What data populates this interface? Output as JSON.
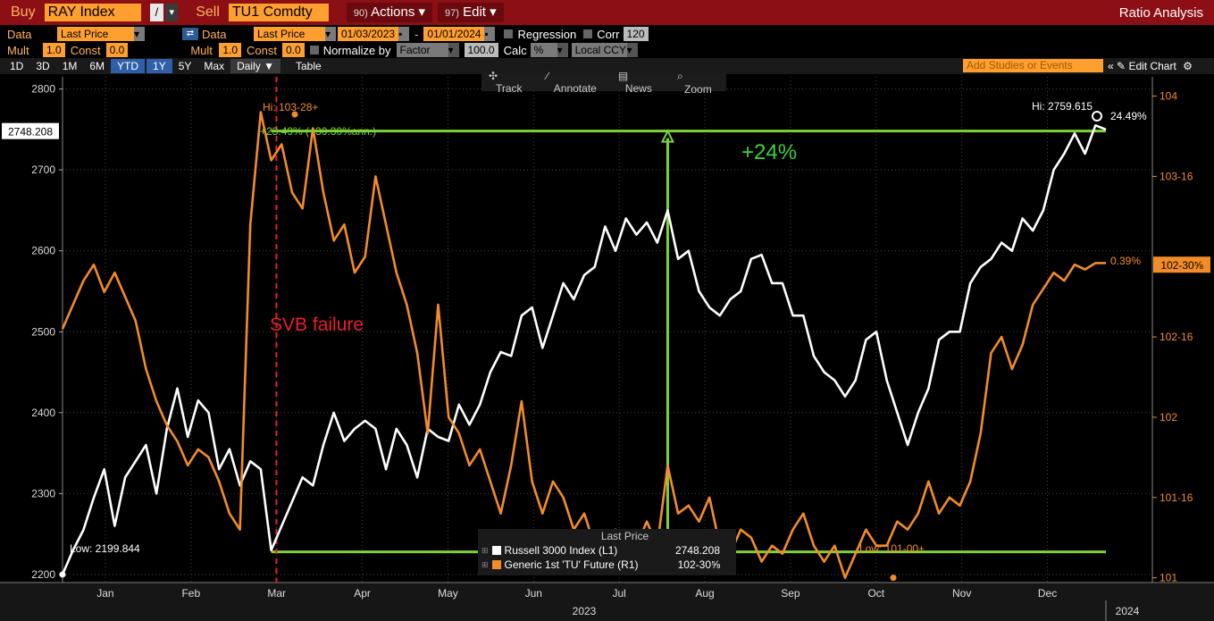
{
  "topbar": {
    "buy_label": "Buy",
    "buy_ticker": "RAY Index",
    "separator": "/",
    "sell_label": "Sell",
    "sell_ticker": "TU1 Comdty",
    "actions_num": "90)",
    "actions_label": "Actions",
    "edit_num": "97)",
    "edit_label": "Edit",
    "title": "Ratio Analysis"
  },
  "row1": {
    "data_label": "Data",
    "data_value": "Last Price",
    "data2_label": "Data",
    "data2_value": "Last Price",
    "start_date": "01/03/2023",
    "dash": "-",
    "end_date": "01/01/2024",
    "regression_label": "Regression",
    "corr_label": "Corr",
    "corr_value": "120"
  },
  "row2": {
    "mult_label": "Mult",
    "mult_value": "1.0",
    "const_label": "Const",
    "const_value": "0.0",
    "mult2_label": "Mult",
    "mult2_value": "1.0",
    "const2_label": "Const",
    "const2_value": "0.0",
    "normalize_label": "Normalize by",
    "normalize_value": "Factor",
    "factor_value": "100.0",
    "calc_label": "Calc",
    "calc_value": "%",
    "ccy_value": "Local CCY"
  },
  "periods": {
    "items": [
      "1D",
      "3D",
      "1M",
      "6M",
      "YTD",
      "1Y",
      "5Y",
      "Max"
    ],
    "freq": "Daily",
    "table": "Table",
    "add_studies": "Add Studies or Events",
    "edit_chart": "Edit Chart"
  },
  "chart_toolbar": {
    "track": "Track",
    "annotate": "Annotate",
    "news": "News",
    "zoom": "Zoom"
  },
  "legend": {
    "title": "Last Price",
    "items": [
      {
        "name": "Russell 3000 Index  (L1)",
        "value": "2748.208",
        "color": "#ffffff"
      },
      {
        "name": "Generic 1st 'TU' Future  (R1)",
        "value": "102-30⅝",
        "color": "#f28c28"
      }
    ]
  },
  "chart_data": {
    "type": "line",
    "x_months": [
      "Jan",
      "Feb",
      "Mar",
      "Apr",
      "May",
      "Jun",
      "Jul",
      "Aug",
      "Sep",
      "Oct",
      "Nov",
      "Dec"
    ],
    "x_year_label": "2023",
    "x_next_year_label": "2024",
    "left_axis": {
      "ticks": [
        2200,
        2300,
        2400,
        2500,
        2600,
        2700,
        2800
      ],
      "range": [
        2190,
        2815
      ]
    },
    "right_axis": {
      "ticks": [
        "101",
        "101-16",
        "102",
        "102-16",
        "103-16",
        "104"
      ],
      "tick_values": [
        101,
        101.5,
        102,
        102.5,
        103.5,
        104
      ],
      "range": [
        100.97,
        104.12
      ]
    },
    "current_left_label": "2748.208",
    "current_right_label": "102-30⅝",
    "series": [
      {
        "name": "Russell 3000 Index",
        "axis": "left",
        "color": "#ffffff",
        "x": [
          0,
          0.01,
          0.02,
          0.03,
          0.04,
          0.05,
          0.06,
          0.07,
          0.08,
          0.09,
          0.1,
          0.11,
          0.12,
          0.13,
          0.14,
          0.15,
          0.16,
          0.17,
          0.18,
          0.19,
          0.2,
          0.21,
          0.22,
          0.23,
          0.24,
          0.25,
          0.26,
          0.27,
          0.28,
          0.29,
          0.3,
          0.31,
          0.32,
          0.33,
          0.34,
          0.35,
          0.36,
          0.37,
          0.38,
          0.39,
          0.4,
          0.41,
          0.42,
          0.43,
          0.44,
          0.45,
          0.46,
          0.47,
          0.48,
          0.49,
          0.5,
          0.51,
          0.52,
          0.53,
          0.54,
          0.55,
          0.56,
          0.57,
          0.58,
          0.59,
          0.6,
          0.61,
          0.62,
          0.63,
          0.64,
          0.65,
          0.66,
          0.67,
          0.68,
          0.69,
          0.7,
          0.71,
          0.72,
          0.73,
          0.74,
          0.75,
          0.76,
          0.77,
          0.78,
          0.79,
          0.8,
          0.81,
          0.82,
          0.83,
          0.84,
          0.85,
          0.86,
          0.87,
          0.88,
          0.89,
          0.9,
          0.91,
          0.92,
          0.93,
          0.94,
          0.95,
          0.96,
          0.97,
          0.98,
          0.99,
          1.0
        ],
        "y": [
          2200,
          2230,
          2255,
          2295,
          2330,
          2260,
          2320,
          2340,
          2360,
          2300,
          2380,
          2430,
          2370,
          2415,
          2400,
          2330,
          2355,
          2310,
          2340,
          2330,
          2230,
          2260,
          2290,
          2320,
          2310,
          2360,
          2400,
          2365,
          2380,
          2390,
          2380,
          2330,
          2380,
          2360,
          2320,
          2380,
          2370,
          2365,
          2410,
          2385,
          2410,
          2450,
          2475,
          2470,
          2520,
          2530,
          2480,
          2520,
          2560,
          2540,
          2570,
          2580,
          2630,
          2600,
          2640,
          2620,
          2635,
          2610,
          2650,
          2590,
          2600,
          2550,
          2530,
          2520,
          2540,
          2550,
          2590,
          2595,
          2560,
          2560,
          2520,
          2520,
          2470,
          2450,
          2440,
          2420,
          2440,
          2490,
          2500,
          2440,
          2400,
          2360,
          2400,
          2430,
          2490,
          2500,
          2500,
          2560,
          2580,
          2590,
          2610,
          2600,
          2640,
          2625,
          2650,
          2700,
          2720,
          2745,
          2720,
          2755,
          2750
        ]
      },
      {
        "name": "Generic 1st 'TU' Future",
        "axis": "right",
        "color": "#f28c28",
        "x": [
          0,
          0.01,
          0.02,
          0.03,
          0.04,
          0.05,
          0.06,
          0.07,
          0.08,
          0.09,
          0.1,
          0.11,
          0.12,
          0.13,
          0.14,
          0.15,
          0.16,
          0.17,
          0.18,
          0.19,
          0.2,
          0.21,
          0.22,
          0.23,
          0.24,
          0.25,
          0.26,
          0.27,
          0.28,
          0.29,
          0.3,
          0.31,
          0.32,
          0.33,
          0.34,
          0.35,
          0.36,
          0.37,
          0.38,
          0.39,
          0.4,
          0.41,
          0.42,
          0.43,
          0.44,
          0.45,
          0.46,
          0.47,
          0.48,
          0.49,
          0.5,
          0.51,
          0.52,
          0.53,
          0.54,
          0.55,
          0.56,
          0.57,
          0.58,
          0.59,
          0.6,
          0.61,
          0.62,
          0.63,
          0.64,
          0.65,
          0.66,
          0.67,
          0.68,
          0.69,
          0.7,
          0.71,
          0.72,
          0.73,
          0.74,
          0.75,
          0.76,
          0.77,
          0.78,
          0.79,
          0.8,
          0.81,
          0.82,
          0.83,
          0.84,
          0.85,
          0.86,
          0.87,
          0.88,
          0.89,
          0.9,
          0.91,
          0.92,
          0.93,
          0.94,
          0.95,
          0.96,
          0.97,
          0.98,
          0.99,
          1.0
        ],
        "y": [
          102.55,
          102.7,
          102.85,
          102.95,
          102.78,
          102.9,
          102.75,
          102.6,
          102.3,
          102.1,
          101.95,
          101.85,
          101.7,
          101.8,
          101.75,
          101.6,
          101.4,
          101.3,
          103.2,
          103.9,
          103.6,
          103.7,
          103.4,
          103.3,
          103.8,
          103.4,
          103.1,
          103.2,
          102.9,
          103.0,
          103.5,
          103.2,
          102.9,
          102.7,
          102.4,
          101.9,
          102.7,
          102.0,
          101.9,
          101.7,
          101.8,
          101.6,
          101.4,
          101.7,
          102.1,
          101.6,
          101.4,
          101.6,
          101.5,
          101.3,
          101.4,
          101.2,
          101.25,
          101.3,
          101.15,
          101.2,
          101.35,
          101.2,
          101.7,
          101.4,
          101.45,
          101.35,
          101.5,
          101.2,
          101.15,
          101.3,
          101.25,
          101.1,
          101.2,
          101.15,
          101.3,
          101.4,
          101.2,
          101.1,
          101.2,
          101.0,
          101.15,
          101.3,
          101.2,
          101.2,
          101.35,
          101.3,
          101.4,
          101.6,
          101.4,
          101.5,
          101.45,
          101.6,
          101.9,
          102.4,
          102.5,
          102.3,
          102.45,
          102.7,
          102.8,
          102.9,
          102.85,
          102.95,
          102.92,
          102.96,
          102.96
        ]
      }
    ],
    "annotations": [
      {
        "text": "SVB failure",
        "color": "#e8202a"
      },
      {
        "text": "+24%",
        "color": "#3fd13a"
      },
      {
        "text": "Hi: 103-28+",
        "color": "#f28c28"
      },
      {
        "text": "+23.49% (+30.30%ann.)",
        "color": "#7fd13a"
      },
      {
        "text": "Hi: 2759.615",
        "color": "#ffffff"
      },
      {
        "text": "24.49%",
        "color": "#ffffff"
      },
      {
        "text": "0.39%",
        "color": "#f28c28"
      },
      {
        "text": "Low: 2199.844",
        "color": "#ffffff"
      },
      {
        "text": "Low: 101-00+",
        "color": "#f28c28"
      }
    ]
  }
}
